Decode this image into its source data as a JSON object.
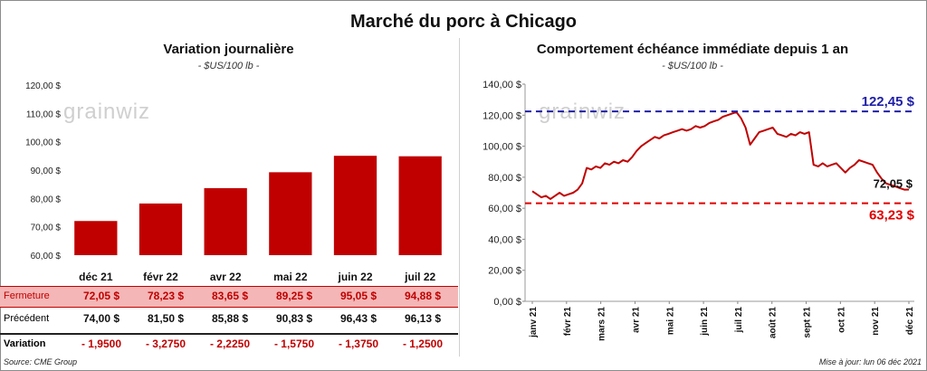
{
  "title": "Marché du porc à Chicago",
  "left_panel": {
    "title": "Variation  journalière",
    "subtitle": "- $US/100 lb -",
    "watermark": "grainwiz",
    "table": {
      "rows": [
        {
          "label": "Fermeture",
          "values": [
            "72,05  $",
            "78,23  $",
            "83,65  $",
            "89,25  $",
            "95,05  $",
            "94,88  $"
          ]
        },
        {
          "label": "Précédent",
          "values": [
            "74,00  $",
            "81,50  $",
            "85,88  $",
            "90,83  $",
            "96,43  $",
            "96,13  $"
          ]
        },
        {
          "label": "Variation",
          "values": [
            "- 1,9500",
            "- 3,2750",
            "- 2,2250",
            "- 1,5750",
            "- 1,3750",
            "- 1,2500"
          ]
        }
      ]
    }
  },
  "right_panel": {
    "title": "Comportement  échéance immédiate depuis 1 an",
    "subtitle": "- $US/100 lb -",
    "watermark": "grainwiz"
  },
  "footer": {
    "source": "Source: CME Group",
    "updated": "Mise à jour: lun 06 déc 2021"
  },
  "colors": {
    "bar": "#c00000",
    "line": "#c00000",
    "high_line": "#1f1fa8",
    "low_line": "#e00000",
    "table_highlight": "#f4b6b6"
  },
  "chart_data": [
    {
      "type": "bar",
      "categories": [
        "déc 21",
        "févr 22",
        "avr 22",
        "mai 22",
        "juin 22",
        "juil 22"
      ],
      "values": [
        72.05,
        78.23,
        83.65,
        89.25,
        95.05,
        94.88
      ],
      "yticks": [
        "60,00 $",
        "70,00 $",
        "80,00 $",
        "90,00 $",
        "100,00 $",
        "110,00 $",
        "120,00 $"
      ],
      "ylim": [
        60,
        120
      ]
    },
    {
      "type": "line",
      "x_labels": [
        "janv 21",
        "févr 21",
        "mars 21",
        "avr 21",
        "mai 21",
        "juin 21",
        "juil 21",
        "août 21",
        "sept 21",
        "oct 21",
        "nov 21",
        "déc 21"
      ],
      "yticks": [
        "0,00 $",
        "20,00 $",
        "40,00 $",
        "60,00 $",
        "80,00 $",
        "100,00 $",
        "120,00 $",
        "140,00 $"
      ],
      "ylim": [
        0,
        140
      ],
      "values": [
        71,
        69,
        67,
        68,
        66,
        68,
        70,
        68,
        69,
        70,
        72,
        76,
        86,
        85,
        87,
        86,
        89,
        88,
        90,
        89,
        91,
        90,
        93,
        97,
        100,
        102,
        104,
        106,
        105,
        107,
        108,
        109,
        110,
        111,
        110,
        111,
        113,
        112,
        113,
        115,
        116,
        117,
        119,
        120,
        121,
        122,
        118,
        112,
        101,
        105,
        109,
        110,
        111,
        112,
        108,
        107,
        106,
        108,
        107,
        109,
        108,
        109,
        88,
        87,
        89,
        87,
        88,
        89,
        86,
        83,
        86,
        88,
        91,
        90,
        89,
        88,
        83,
        79,
        76,
        75,
        74,
        73,
        72,
        72.05
      ],
      "max_value": 122.45,
      "min_value": 63.23,
      "max_label": "122,45 $",
      "min_label": "63,23 $",
      "last_label": "72,05 $"
    }
  ]
}
